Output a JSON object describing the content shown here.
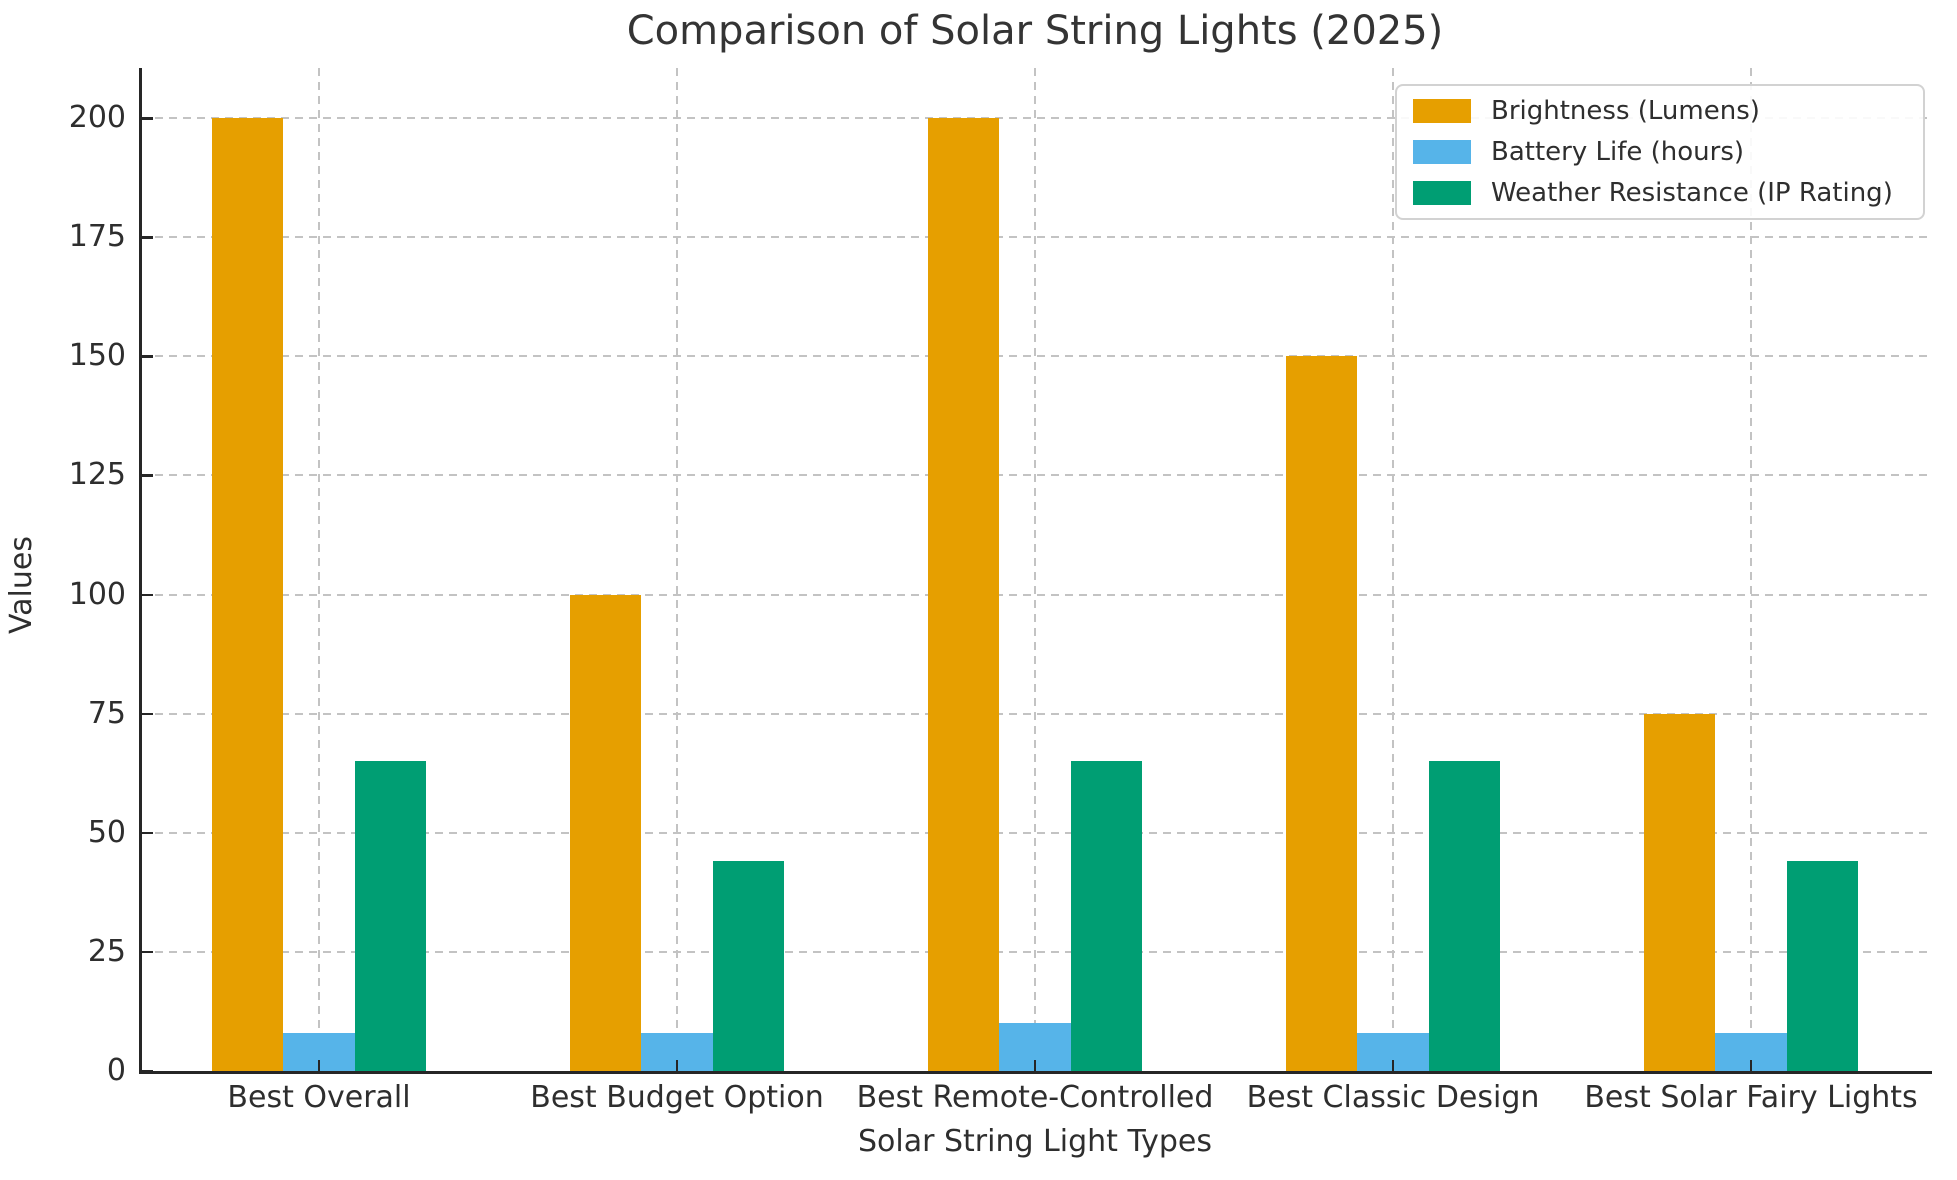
{
  "chart_data": {
    "type": "bar",
    "title": "Comparison of Solar String Lights (2025)",
    "xlabel": "Solar String Light Types",
    "ylabel": "Values",
    "categories": [
      "Best Overall",
      "Best Budget Option",
      "Best Remote-Controlled",
      "Best Classic Design",
      "Best Solar Fairy Lights"
    ],
    "series": [
      {
        "name": "Brightness (Lumens)",
        "color": "#E69F00",
        "values": [
          200,
          100,
          200,
          150,
          75
        ]
      },
      {
        "name": "Battery Life (hours)",
        "color": "#56B4E9",
        "values": [
          8,
          8,
          10,
          8,
          8
        ]
      },
      {
        "name": "Weather Resistance (IP Rating)",
        "color": "#009E73",
        "values": [
          65,
          44,
          65,
          65,
          44
        ]
      }
    ],
    "yticks": [
      0,
      25,
      50,
      75,
      100,
      125,
      150,
      175,
      200
    ],
    "ylim": [
      0,
      210
    ],
    "grid": true,
    "grid_style": "dashed",
    "legend_position": "upper right"
  }
}
